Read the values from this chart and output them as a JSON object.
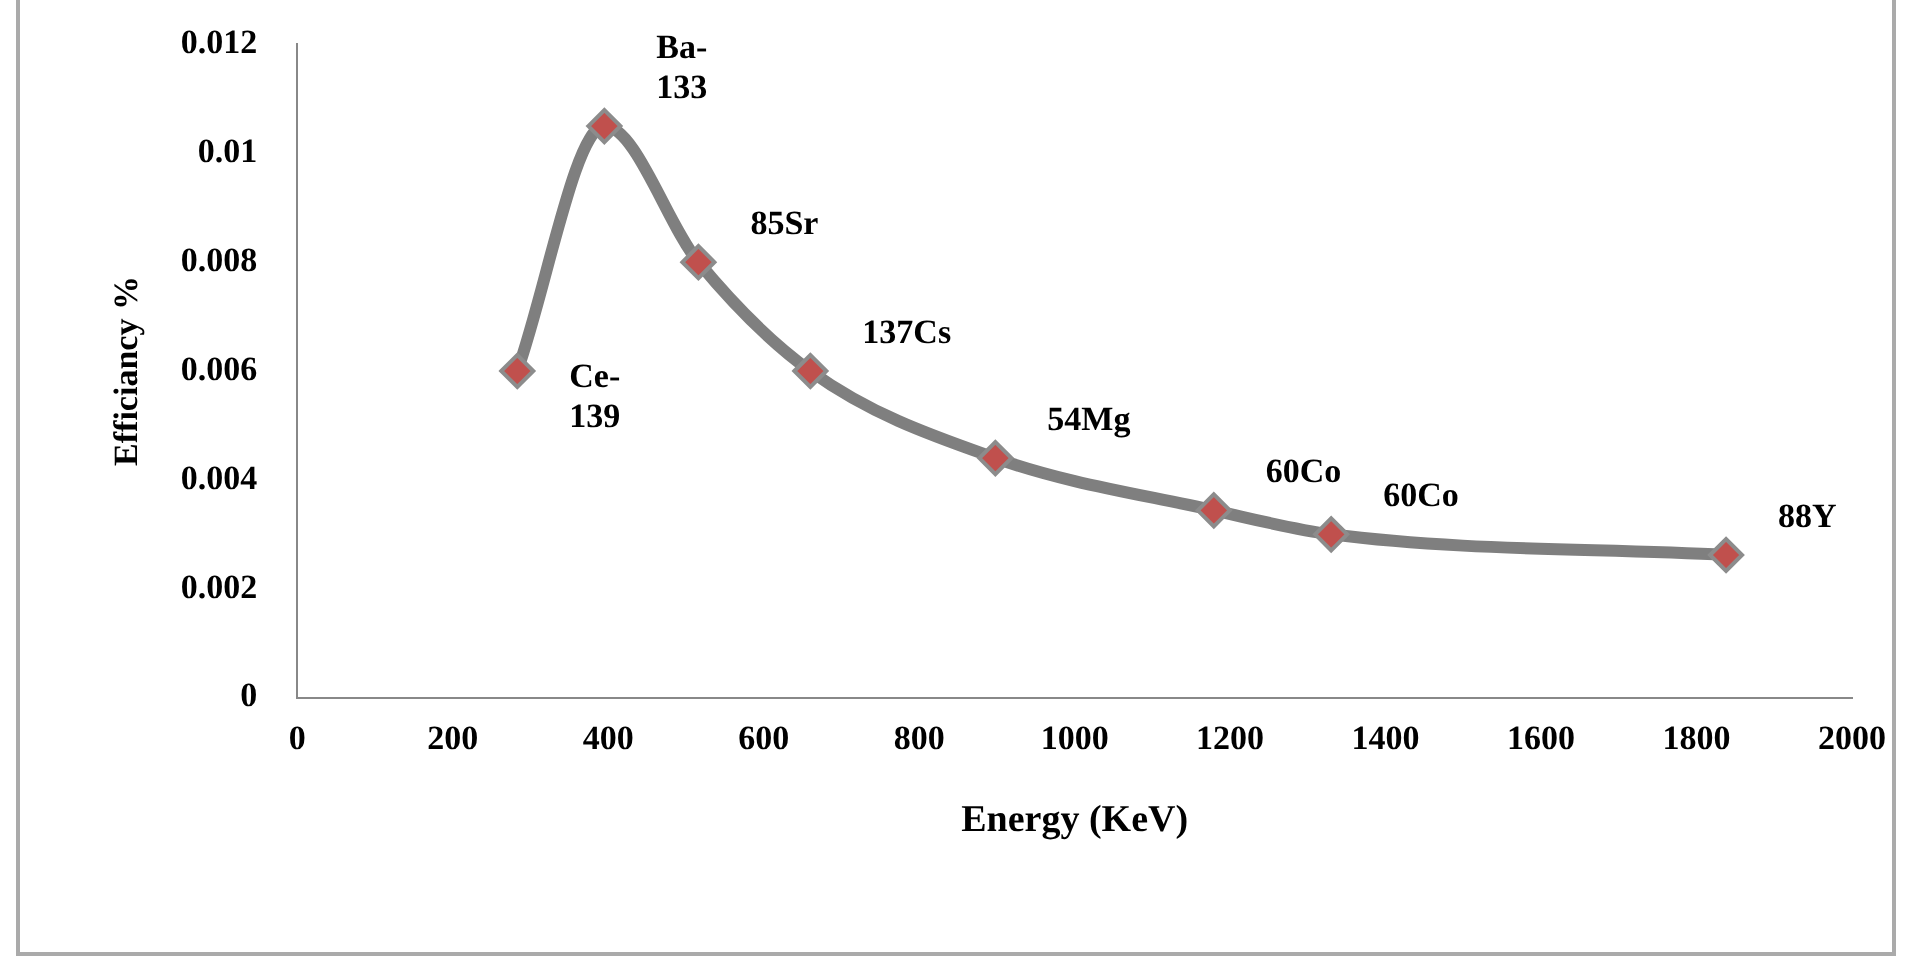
{
  "chart_data": {
    "type": "line",
    "xlabel": "Energy (KeV)",
    "ylabel": "Efficiancy %",
    "x": [
      283,
      395,
      516,
      660,
      898,
      1179,
      1330,
      1838
    ],
    "series": [
      {
        "color": "#7f7f7f",
        "values": [
          0.006,
          0.0105,
          0.008,
          0.006,
          0.0044,
          0.00344,
          0.003,
          0.00262
        ]
      }
    ],
    "marker": "diamond",
    "grid": false,
    "legend": false,
    "xlim": [
      0,
      2000
    ],
    "xticks": [
      0,
      200,
      400,
      600,
      800,
      1000,
      1200,
      1400,
      1600,
      1800,
      2000
    ],
    "ylim": [
      0,
      0.012
    ],
    "yticks": [
      0,
      0.002,
      0.004,
      0.006,
      0.008,
      {
        "value": 0.01,
        "label": "0.01"
      },
      0.012
    ],
    "annotations": [
      {
        "text": "Ce-139",
        "x": 283,
        "y": 0.006
      },
      {
        "text": "Ba-133",
        "x": 395,
        "y": 0.0105
      },
      {
        "text": "85Sr",
        "x": 516,
        "y": 0.008
      },
      {
        "text": "137Cs",
        "x": 660,
        "y": 0.006
      },
      {
        "text": "54Mg",
        "x": 898,
        "y": 0.0044
      },
      {
        "text": "60Co",
        "x": 1179,
        "y": 0.00344
      },
      {
        "text": "60Co",
        "x": 1330,
        "y": 0.003
      },
      {
        "text": "88Y",
        "x": 1838,
        "y": 0.00262
      }
    ]
  }
}
